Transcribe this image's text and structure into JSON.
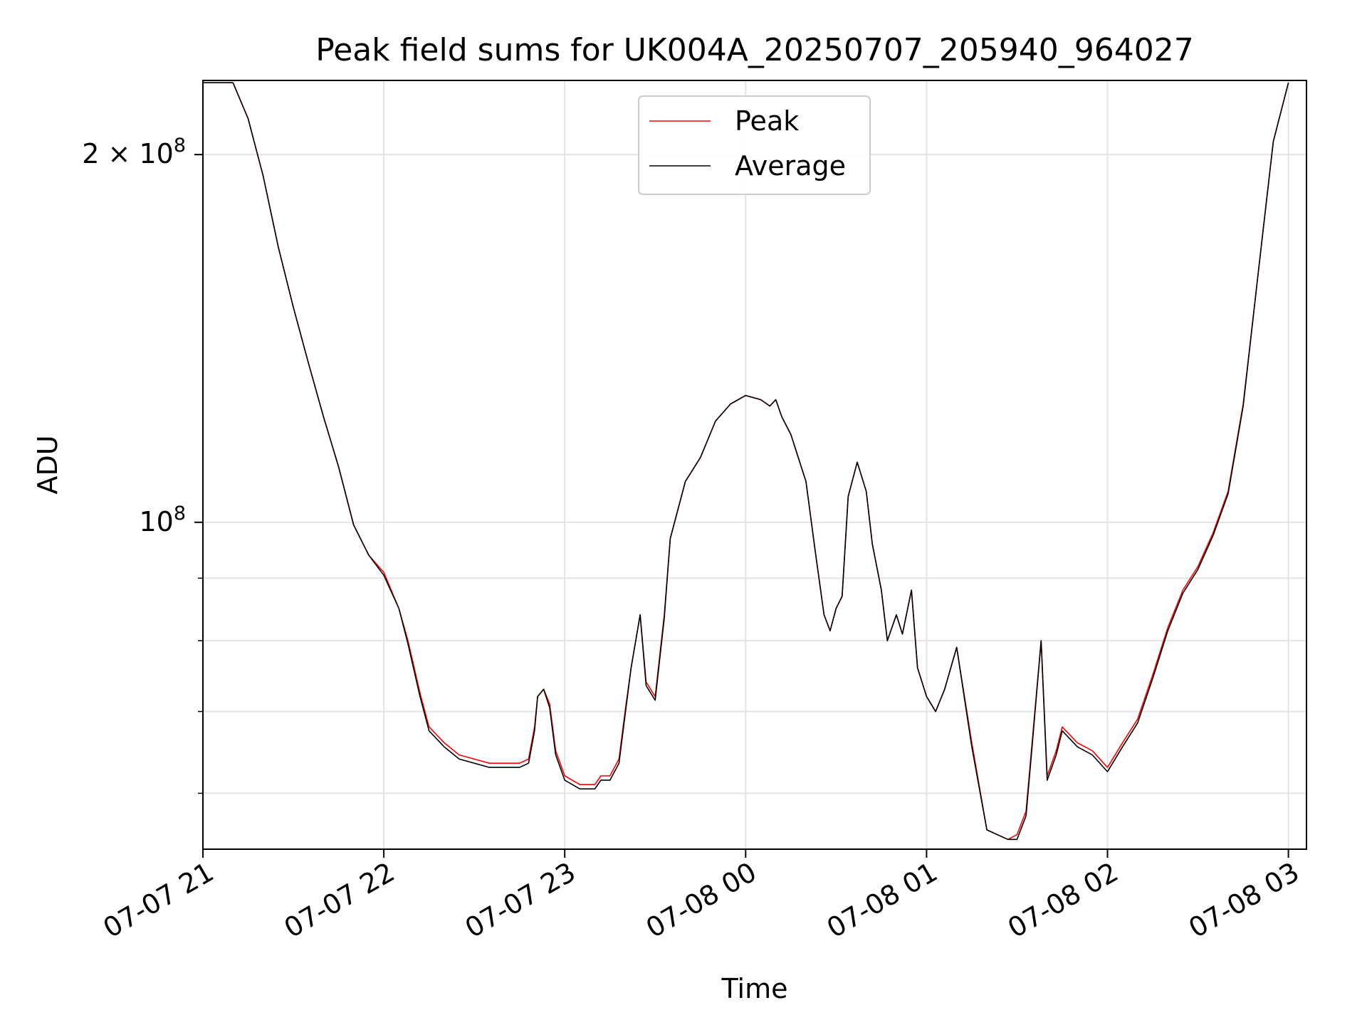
{
  "chart_data": {
    "type": "line",
    "title": "Peak field sums for UK004A_20250707_205940_964027",
    "xlabel": "Time",
    "ylabel": "ADU",
    "yscale": "log",
    "grid": true,
    "legend_position": "upper center",
    "xlim": [
      "2025-07-07 21:00",
      "2025-07-08 03:06"
    ],
    "ylim": [
      54000000,
      230000000
    ],
    "x_ticks": [
      {
        "at": "2025-07-07 21:00",
        "label": "07-07 21"
      },
      {
        "at": "2025-07-07 22:00",
        "label": "07-07 22"
      },
      {
        "at": "2025-07-07 23:00",
        "label": "07-07 23"
      },
      {
        "at": "2025-07-08 00:00",
        "label": "07-08 00"
      },
      {
        "at": "2025-07-08 01:00",
        "label": "07-08 01"
      },
      {
        "at": "2025-07-08 02:00",
        "label": "07-08 02"
      },
      {
        "at": "2025-07-08 03:00",
        "label": "07-08 03"
      }
    ],
    "y_ticks_labeled": [
      {
        "value": 200000000,
        "label_base": "2 × 10",
        "label_exp": "8"
      },
      {
        "value": 100000000,
        "label_base": "10",
        "label_exp": "8"
      }
    ],
    "y_ticks_minor": [
      60000000,
      70000000,
      80000000,
      90000000
    ],
    "series": [
      {
        "name": "Peak",
        "color": "#ff0000",
        "x": [
          "2025-07-07 21:00",
          "2025-07-07 21:10",
          "2025-07-07 21:15",
          "2025-07-07 21:20",
          "2025-07-07 21:25",
          "2025-07-07 21:30",
          "2025-07-07 21:35",
          "2025-07-07 21:40",
          "2025-07-07 21:45",
          "2025-07-07 21:50",
          "2025-07-07 21:55",
          "2025-07-07 22:00",
          "2025-07-07 22:05",
          "2025-07-07 22:08",
          "2025-07-07 22:12",
          "2025-07-07 22:15",
          "2025-07-07 22:20",
          "2025-07-07 22:25",
          "2025-07-07 22:30",
          "2025-07-07 22:35",
          "2025-07-07 22:40",
          "2025-07-07 22:45",
          "2025-07-07 22:48",
          "2025-07-07 22:50",
          "2025-07-07 22:51",
          "2025-07-07 22:53",
          "2025-07-07 22:55",
          "2025-07-07 22:57",
          "2025-07-07 23:00",
          "2025-07-07 23:05",
          "2025-07-07 23:10",
          "2025-07-07 23:12",
          "2025-07-07 23:15",
          "2025-07-07 23:18",
          "2025-07-07 23:20",
          "2025-07-07 23:22",
          "2025-07-07 23:25",
          "2025-07-07 23:27",
          "2025-07-07 23:30",
          "2025-07-07 23:33",
          "2025-07-07 23:35",
          "2025-07-07 23:40",
          "2025-07-07 23:45",
          "2025-07-07 23:50",
          "2025-07-07 23:55",
          "2025-07-08 00:00",
          "2025-07-08 00:05",
          "2025-07-08 00:08",
          "2025-07-08 00:10",
          "2025-07-08 00:12",
          "2025-07-08 00:15",
          "2025-07-08 00:20",
          "2025-07-08 00:23",
          "2025-07-08 00:26",
          "2025-07-08 00:28",
          "2025-07-08 00:30",
          "2025-07-08 00:32",
          "2025-07-08 00:34",
          "2025-07-08 00:37",
          "2025-07-08 00:40",
          "2025-07-08 00:42",
          "2025-07-08 00:45",
          "2025-07-08 00:47",
          "2025-07-08 00:50",
          "2025-07-08 00:52",
          "2025-07-08 00:55",
          "2025-07-08 00:57",
          "2025-07-08 01:00",
          "2025-07-08 01:03",
          "2025-07-08 01:06",
          "2025-07-08 01:10",
          "2025-07-08 01:15",
          "2025-07-08 01:20",
          "2025-07-08 01:27",
          "2025-07-08 01:30",
          "2025-07-08 01:33",
          "2025-07-08 01:35",
          "2025-07-08 01:38",
          "2025-07-08 01:40",
          "2025-07-08 01:43",
          "2025-07-08 01:45",
          "2025-07-08 01:50",
          "2025-07-08 01:55",
          "2025-07-08 02:00",
          "2025-07-08 02:05",
          "2025-07-08 02:10",
          "2025-07-08 02:15",
          "2025-07-08 02:20",
          "2025-07-08 02:25",
          "2025-07-08 02:30",
          "2025-07-08 02:35",
          "2025-07-08 02:40",
          "2025-07-08 02:45",
          "2025-07-08 02:50",
          "2025-07-08 02:55",
          "2025-07-08 03:00"
        ],
        "y": [
          229000000,
          229000000,
          214000000,
          192000000,
          168000000,
          150000000,
          135000000,
          122000000,
          111000000,
          99500000,
          94000000,
          91000000,
          85000000,
          80000000,
          72500000,
          68000000,
          66000000,
          64500000,
          64000000,
          63500000,
          63500000,
          63500000,
          64000000,
          68000000,
          72000000,
          73000000,
          71000000,
          65000000,
          62000000,
          61000000,
          61000000,
          62000000,
          62000000,
          64000000,
          70000000,
          76000000,
          84000000,
          74000000,
          72000000,
          84000000,
          97000000,
          108000000,
          113000000,
          121000000,
          125000000,
          127000000,
          126000000,
          124500000,
          126000000,
          122000000,
          118000000,
          108000000,
          95000000,
          84000000,
          81500000,
          85000000,
          87000000,
          105000000,
          112000000,
          106000000,
          96000000,
          88000000,
          80000000,
          84000000,
          81000000,
          88000000,
          76000000,
          72000000,
          70000000,
          73000000,
          79000000,
          66000000,
          56000000,
          55000000,
          55500000,
          58000000,
          66000000,
          80000000,
          62000000,
          65000000,
          68000000,
          66000000,
          65000000,
          63000000,
          66000000,
          69000000,
          75000000,
          82000000,
          88000000,
          92000000,
          98000000,
          106000000,
          125000000,
          160000000,
          205000000,
          229000000
        ]
      },
      {
        "name": "Average",
        "color": "#000000",
        "x": [
          "2025-07-07 21:00",
          "2025-07-07 21:10",
          "2025-07-07 21:15",
          "2025-07-07 21:20",
          "2025-07-07 21:25",
          "2025-07-07 21:30",
          "2025-07-07 21:35",
          "2025-07-07 21:40",
          "2025-07-07 21:45",
          "2025-07-07 21:50",
          "2025-07-07 21:55",
          "2025-07-07 22:00",
          "2025-07-07 22:05",
          "2025-07-07 22:08",
          "2025-07-07 22:12",
          "2025-07-07 22:15",
          "2025-07-07 22:20",
          "2025-07-07 22:25",
          "2025-07-07 22:30",
          "2025-07-07 22:35",
          "2025-07-07 22:40",
          "2025-07-07 22:45",
          "2025-07-07 22:48",
          "2025-07-07 22:50",
          "2025-07-07 22:51",
          "2025-07-07 22:53",
          "2025-07-07 22:55",
          "2025-07-07 22:57",
          "2025-07-07 23:00",
          "2025-07-07 23:05",
          "2025-07-07 23:10",
          "2025-07-07 23:12",
          "2025-07-07 23:15",
          "2025-07-07 23:18",
          "2025-07-07 23:20",
          "2025-07-07 23:22",
          "2025-07-07 23:25",
          "2025-07-07 23:27",
          "2025-07-07 23:30",
          "2025-07-07 23:33",
          "2025-07-07 23:35",
          "2025-07-07 23:40",
          "2025-07-07 23:45",
          "2025-07-07 23:50",
          "2025-07-07 23:55",
          "2025-07-08 00:00",
          "2025-07-08 00:05",
          "2025-07-08 00:08",
          "2025-07-08 00:10",
          "2025-07-08 00:12",
          "2025-07-08 00:15",
          "2025-07-08 00:20",
          "2025-07-08 00:23",
          "2025-07-08 00:26",
          "2025-07-08 00:28",
          "2025-07-08 00:30",
          "2025-07-08 00:32",
          "2025-07-08 00:34",
          "2025-07-08 00:37",
          "2025-07-08 00:40",
          "2025-07-08 00:42",
          "2025-07-08 00:45",
          "2025-07-08 00:47",
          "2025-07-08 00:50",
          "2025-07-08 00:52",
          "2025-07-08 00:55",
          "2025-07-08 00:57",
          "2025-07-08 01:00",
          "2025-07-08 01:03",
          "2025-07-08 01:06",
          "2025-07-08 01:10",
          "2025-07-08 01:15",
          "2025-07-08 01:20",
          "2025-07-08 01:27",
          "2025-07-08 01:30",
          "2025-07-08 01:33",
          "2025-07-08 01:35",
          "2025-07-08 01:38",
          "2025-07-08 01:40",
          "2025-07-08 01:43",
          "2025-07-08 01:45",
          "2025-07-08 01:50",
          "2025-07-08 01:55",
          "2025-07-08 02:00",
          "2025-07-08 02:05",
          "2025-07-08 02:10",
          "2025-07-08 02:15",
          "2025-07-08 02:20",
          "2025-07-08 02:25",
          "2025-07-08 02:30",
          "2025-07-08 02:35",
          "2025-07-08 02:40",
          "2025-07-08 02:45",
          "2025-07-08 02:50",
          "2025-07-08 02:55",
          "2025-07-08 03:00"
        ],
        "y": [
          229000000,
          229000000,
          214000000,
          192000000,
          168000000,
          150000000,
          135000000,
          122000000,
          111000000,
          99500000,
          94000000,
          90500000,
          85000000,
          79500000,
          72000000,
          67500000,
          65500000,
          64000000,
          63500000,
          63000000,
          63000000,
          63000000,
          63500000,
          67500000,
          72000000,
          73000000,
          70500000,
          64500000,
          61500000,
          60500000,
          60500000,
          61500000,
          61500000,
          63500000,
          69500000,
          76000000,
          84000000,
          73500000,
          71500000,
          83500000,
          97000000,
          108000000,
          113000000,
          121000000,
          125000000,
          127000000,
          126000000,
          124500000,
          126000000,
          122000000,
          118000000,
          108000000,
          95000000,
          84000000,
          81500000,
          85000000,
          87000000,
          105000000,
          112000000,
          106000000,
          96000000,
          88000000,
          80000000,
          84000000,
          81000000,
          88000000,
          76000000,
          72000000,
          70000000,
          73000000,
          79000000,
          65500000,
          56000000,
          55000000,
          55000000,
          57500000,
          65500000,
          80000000,
          61500000,
          64500000,
          67500000,
          65500000,
          64500000,
          62500000,
          65500000,
          68500000,
          74500000,
          81500000,
          87500000,
          91500000,
          97500000,
          105500000,
          124500000,
          160000000,
          205000000,
          229000000
        ]
      }
    ]
  }
}
